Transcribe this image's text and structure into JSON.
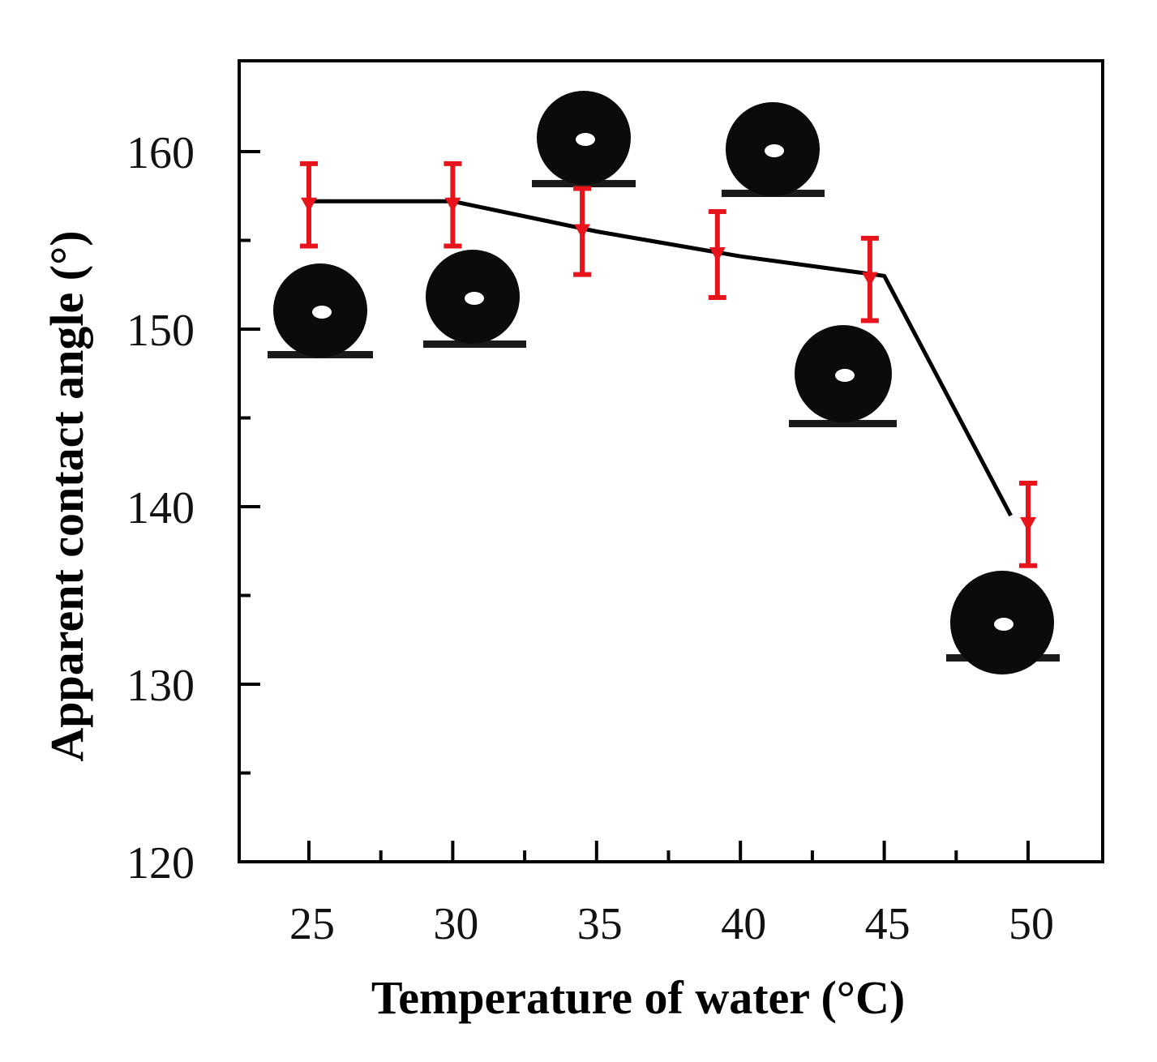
{
  "chart_data": {
    "type": "line",
    "title": "",
    "xlabel": "Temperature of water (°C)",
    "ylabel": "Apparent contact angle (°)",
    "x": [
      25,
      30,
      35,
      40,
      45,
      50
    ],
    "x_tick_labels": [
      "25",
      "30",
      "35",
      "40",
      "45",
      "50"
    ],
    "y_tick_labels": [
      "120",
      "130",
      "140",
      "150",
      "160"
    ],
    "xlim": [
      23,
      51.5
    ],
    "ylim": [
      120,
      165
    ],
    "y_ticks": [
      120,
      130,
      140,
      150,
      160
    ],
    "y_minor_ticks": [
      125,
      135,
      145,
      155
    ],
    "x_minor_ticks": [
      27.5,
      32.5,
      37.5,
      42.5,
      47.5
    ],
    "series": [
      {
        "name": "Apparent contact angle",
        "x_plot": [
          25,
          30,
          34.5,
          39.2,
          44.5,
          50
        ],
        "values": [
          157,
          157,
          155.5,
          154.2,
          152.8,
          139
        ],
        "error": [
          1.5,
          1.5,
          1.6,
          1.6,
          1.5,
          1.5
        ],
        "marker_color": "#e8141b"
      }
    ],
    "line_x": [
      25,
      30,
      35,
      40,
      45,
      49.4
    ],
    "line_y": [
      157.2,
      157.2,
      155.5,
      154.1,
      153,
      139.5
    ],
    "line_color": "#000000",
    "droplet_images": [
      {
        "label": "droplet at 25 °C",
        "temp": 25
      },
      {
        "label": "droplet at 30 °C",
        "temp": 30
      },
      {
        "label": "droplet at 35 °C",
        "temp": 35
      },
      {
        "label": "droplet at 40 °C",
        "temp": 40
      },
      {
        "label": "droplet at 45 °C",
        "temp": 45
      },
      {
        "label": "droplet at 50 °C",
        "temp": 50
      }
    ]
  }
}
